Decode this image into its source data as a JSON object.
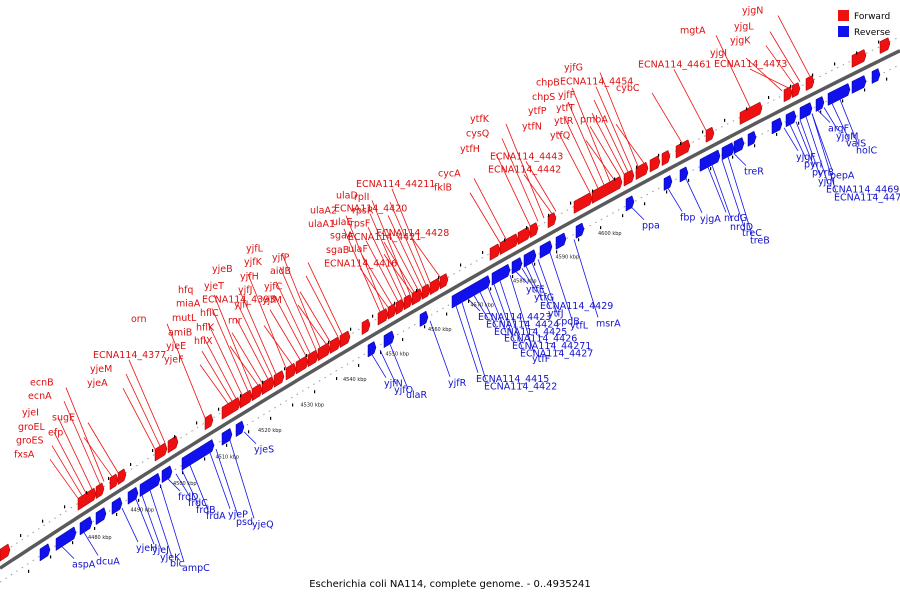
{
  "caption": "Escherichia coli NA114, complete genome. - 0..4935241",
  "legend": {
    "forward": {
      "label": "Forward",
      "color": "#ee1111"
    },
    "reverse": {
      "label": "Reverse",
      "color": "#1111ee"
    }
  },
  "colors": {
    "forward": "#ee1111",
    "reverse": "#1111ee",
    "backbone": "#7a7a7a"
  },
  "ticks": [
    "4480 kbp",
    "4490 kbp",
    "4500 kbp",
    "4510 kbp",
    "4520 kbp",
    "4530 kbp",
    "4540 kbp",
    "4550 kbp",
    "4560 kbp",
    "4570 kbp",
    "4580 kbp",
    "4590 kbp",
    "4600 kbp"
  ],
  "forward_labels": [
    {
      "text": "fxsA",
      "gx": 78
    },
    {
      "text": "groES",
      "gx": 82
    },
    {
      "text": "groEL",
      "gx": 86
    },
    {
      "text": "yjeI",
      "gx": 92
    },
    {
      "text": "ecnA",
      "gx": 100
    },
    {
      "text": "ecnB",
      "gx": 104
    },
    {
      "text": "efp",
      "gx": 112
    },
    {
      "text": "sugE",
      "gx": 118
    },
    {
      "text": "yjeA",
      "gx": 155
    },
    {
      "text": "yjeM",
      "gx": 160
    },
    {
      "text": "ECNA114_4377",
      "gx": 165
    },
    {
      "text": "orn",
      "gx": 205
    },
    {
      "text": "yjeF",
      "gx": 228
    },
    {
      "text": "yjeE",
      "gx": 232
    },
    {
      "text": "amiB",
      "gx": 236
    },
    {
      "text": "mutL",
      "gx": 242
    },
    {
      "text": "miaA",
      "gx": 248
    },
    {
      "text": "hfq",
      "gx": 252
    },
    {
      "text": "hflX",
      "gx": 258
    },
    {
      "text": "hflK",
      "gx": 262
    },
    {
      "text": "hflC",
      "gx": 268
    },
    {
      "text": "ECNA114_4393",
      "gx": 272
    },
    {
      "text": "yjeT",
      "gx": 276
    },
    {
      "text": "yjeB",
      "gx": 286
    },
    {
      "text": "rnr",
      "gx": 292
    },
    {
      "text": "yjfI",
      "gx": 300
    },
    {
      "text": "yjfJ",
      "gx": 306
    },
    {
      "text": "yjfH",
      "gx": 310
    },
    {
      "text": "yjfK",
      "gx": 316
    },
    {
      "text": "yjfL",
      "gx": 320
    },
    {
      "text": "yjfM",
      "gx": 326
    },
    {
      "text": "yjfC",
      "gx": 330
    },
    {
      "text": "aidB",
      "gx": 338
    },
    {
      "text": "yjfP",
      "gx": 342
    },
    {
      "text": "ulaA1",
      "gx": 380
    },
    {
      "text": "ulaA2",
      "gx": 384
    },
    {
      "text": "ECNA114_4416",
      "gx": 388
    },
    {
      "text": "sgaB",
      "gx": 392
    },
    {
      "text": "sgaA",
      "gx": 398
    },
    {
      "text": "ulaE",
      "gx": 402
    },
    {
      "text": "ECNA114_4420",
      "gx": 406
    },
    {
      "text": "ulaD",
      "gx": 410
    },
    {
      "text": "ulaF",
      "gx": 412
    },
    {
      "text": "ECNA114_4421",
      "gx": 414
    },
    {
      "text": "rpsF",
      "gx": 418
    },
    {
      "text": "rpsR",
      "gx": 422
    },
    {
      "text": "rplI",
      "gx": 426
    },
    {
      "text": "ECNA114_44211",
      "gx": 430
    },
    {
      "text": "ECNA114_4428",
      "gx": 440
    },
    {
      "text": "fklB",
      "gx": 500
    },
    {
      "text": "cycA",
      "gx": 506
    },
    {
      "text": "ytfH",
      "gx": 530
    },
    {
      "text": "cysQ",
      "gx": 538
    },
    {
      "text": "ytfK",
      "gx": 544
    },
    {
      "text": "ECNA114_4442",
      "gx": 552
    },
    {
      "text": "ECNA114_4443",
      "gx": 556
    },
    {
      "text": "ytfN",
      "gx": 590
    },
    {
      "text": "ytfP",
      "gx": 598
    },
    {
      "text": "chpS",
      "gx": 604
    },
    {
      "text": "chpB",
      "gx": 610
    },
    {
      "text": "ytfQ",
      "gx": 614
    },
    {
      "text": "ytfR",
      "gx": 620
    },
    {
      "text": "ytfT",
      "gx": 624
    },
    {
      "text": "yjfF",
      "gx": 628
    },
    {
      "text": "ECNA114_4454",
      "gx": 632
    },
    {
      "text": "yjfG",
      "gx": 638
    },
    {
      "text": "pmbA",
      "gx": 644
    },
    {
      "text": "cybC",
      "gx": 682
    },
    {
      "text": "ECNA114_4461",
      "gx": 706
    },
    {
      "text": "mgtA",
      "gx": 750
    },
    {
      "text": "yjgI",
      "gx": 782
    },
    {
      "text": "ECNA114_4473",
      "gx": 788
    },
    {
      "text": "yjgK",
      "gx": 794
    },
    {
      "text": "yjgL",
      "gx": 800
    },
    {
      "text": "yjgN",
      "gx": 810
    }
  ],
  "reverse_labels": [
    {
      "text": "aspA",
      "gx": 62
    },
    {
      "text": "dcuA",
      "gx": 84
    },
    {
      "text": "yjeH",
      "gx": 122
    },
    {
      "text": "yjeJ",
      "gx": 136
    },
    {
      "text": "yjeK",
      "gx": 142
    },
    {
      "text": "blc",
      "gx": 150
    },
    {
      "text": "ampC",
      "gx": 160
    },
    {
      "text": "frdD",
      "gx": 168
    },
    {
      "text": "frdC",
      "gx": 176
    },
    {
      "text": "frdB",
      "gx": 182
    },
    {
      "text": "frdA",
      "gx": 190
    },
    {
      "text": "yjeP",
      "gx": 210
    },
    {
      "text": "psd",
      "gx": 216
    },
    {
      "text": "yjeQ",
      "gx": 230
    },
    {
      "text": "yjeS",
      "gx": 244
    },
    {
      "text": "yjfN",
      "gx": 372
    },
    {
      "text": "yjfO",
      "gx": 380
    },
    {
      "text": "ulaR",
      "gx": 390
    },
    {
      "text": "yjfR",
      "gx": 430
    },
    {
      "text": "ECNA114_4415",
      "gx": 456
    },
    {
      "text": "ECNA114_4422",
      "gx": 462
    },
    {
      "text": "ECNA114_4423",
      "gx": 468
    },
    {
      "text": "ECNA114_4424",
      "gx": 474
    },
    {
      "text": "ECNA114_4425",
      "gx": 480
    },
    {
      "text": "ECNA114_4426",
      "gx": 488
    },
    {
      "text": "ECNA114_44271",
      "gx": 494
    },
    {
      "text": "ECNA114_4427",
      "gx": 500
    },
    {
      "text": "ytfF",
      "gx": 510
    },
    {
      "text": "ytfE",
      "gx": 516
    },
    {
      "text": "ytfG",
      "gx": 522
    },
    {
      "text": "ECNA114_4429",
      "gx": 526
    },
    {
      "text": "ytfJ",
      "gx": 532
    },
    {
      "text": "cpdB",
      "gx": 538
    },
    {
      "text": "ytfL",
      "gx": 550
    },
    {
      "text": "msrA",
      "gx": 574
    },
    {
      "text": "ppa",
      "gx": 632
    },
    {
      "text": "fbp",
      "gx": 668
    },
    {
      "text": "yjgA",
      "gx": 686
    },
    {
      "text": "nrdG",
      "gx": 708
    },
    {
      "text": "nrdD",
      "gx": 712
    },
    {
      "text": "treC",
      "gx": 722
    },
    {
      "text": "treB",
      "gx": 728
    },
    {
      "text": "treR",
      "gx": 734
    },
    {
      "text": "yjgF",
      "gx": 784
    },
    {
      "text": "pyrI",
      "gx": 790
    },
    {
      "text": "pyrB",
      "gx": 796
    },
    {
      "text": "yjgI",
      "gx": 800
    },
    {
      "text": "ECNA114_4469",
      "gx": 806
    },
    {
      "text": "ECNA114_4470",
      "gx": 812
    },
    {
      "text": "argF",
      "gx": 818
    },
    {
      "text": "yjgM",
      "gx": 824
    },
    {
      "text": "valS",
      "gx": 832
    },
    {
      "text": "holC",
      "gx": 840
    },
    {
      "text": "pepA",
      "gx": 812
    }
  ]
}
